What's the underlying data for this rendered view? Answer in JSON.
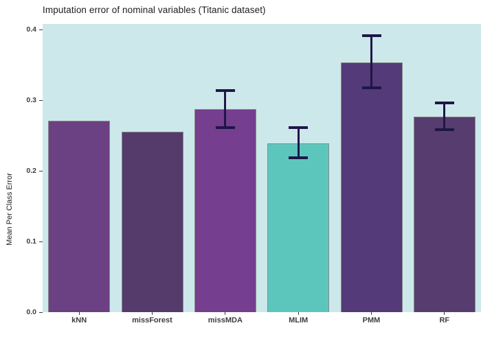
{
  "chart_data": {
    "type": "bar",
    "title": "Imputation error of nominal variables (Titanic dataset)",
    "xlabel": "",
    "ylabel": "Mean Per Class Error",
    "categories": [
      "kNN",
      "missForest",
      "missMDA",
      "MLIM",
      "PMM",
      "RF"
    ],
    "values": [
      0.271,
      0.255,
      0.287,
      0.239,
      0.353,
      0.277
    ],
    "error_bars": [
      null,
      null,
      {
        "low": 0.261,
        "high": 0.314
      },
      {
        "low": 0.218,
        "high": 0.261
      },
      {
        "low": 0.317,
        "high": 0.391
      },
      {
        "low": 0.258,
        "high": 0.296
      }
    ],
    "bar_colors": [
      "#6b4183",
      "#543b6c",
      "#753e8e",
      "#5cc6bc",
      "#543a78",
      "#573d6f"
    ],
    "bar_border_color": "#8a8a8a",
    "error_bar_color": "#1e1648",
    "panel_background": "#cde8ea",
    "outer_background": "#ffffff",
    "ylim": [
      0,
      0.4
    ],
    "yticks": [
      0.0,
      0.1,
      0.2,
      0.3,
      0.4
    ],
    "ytick_labels": [
      "0.0",
      "0.1",
      "0.2",
      "0.3",
      "0.4"
    ],
    "grid": false,
    "legend_position": "none"
  }
}
